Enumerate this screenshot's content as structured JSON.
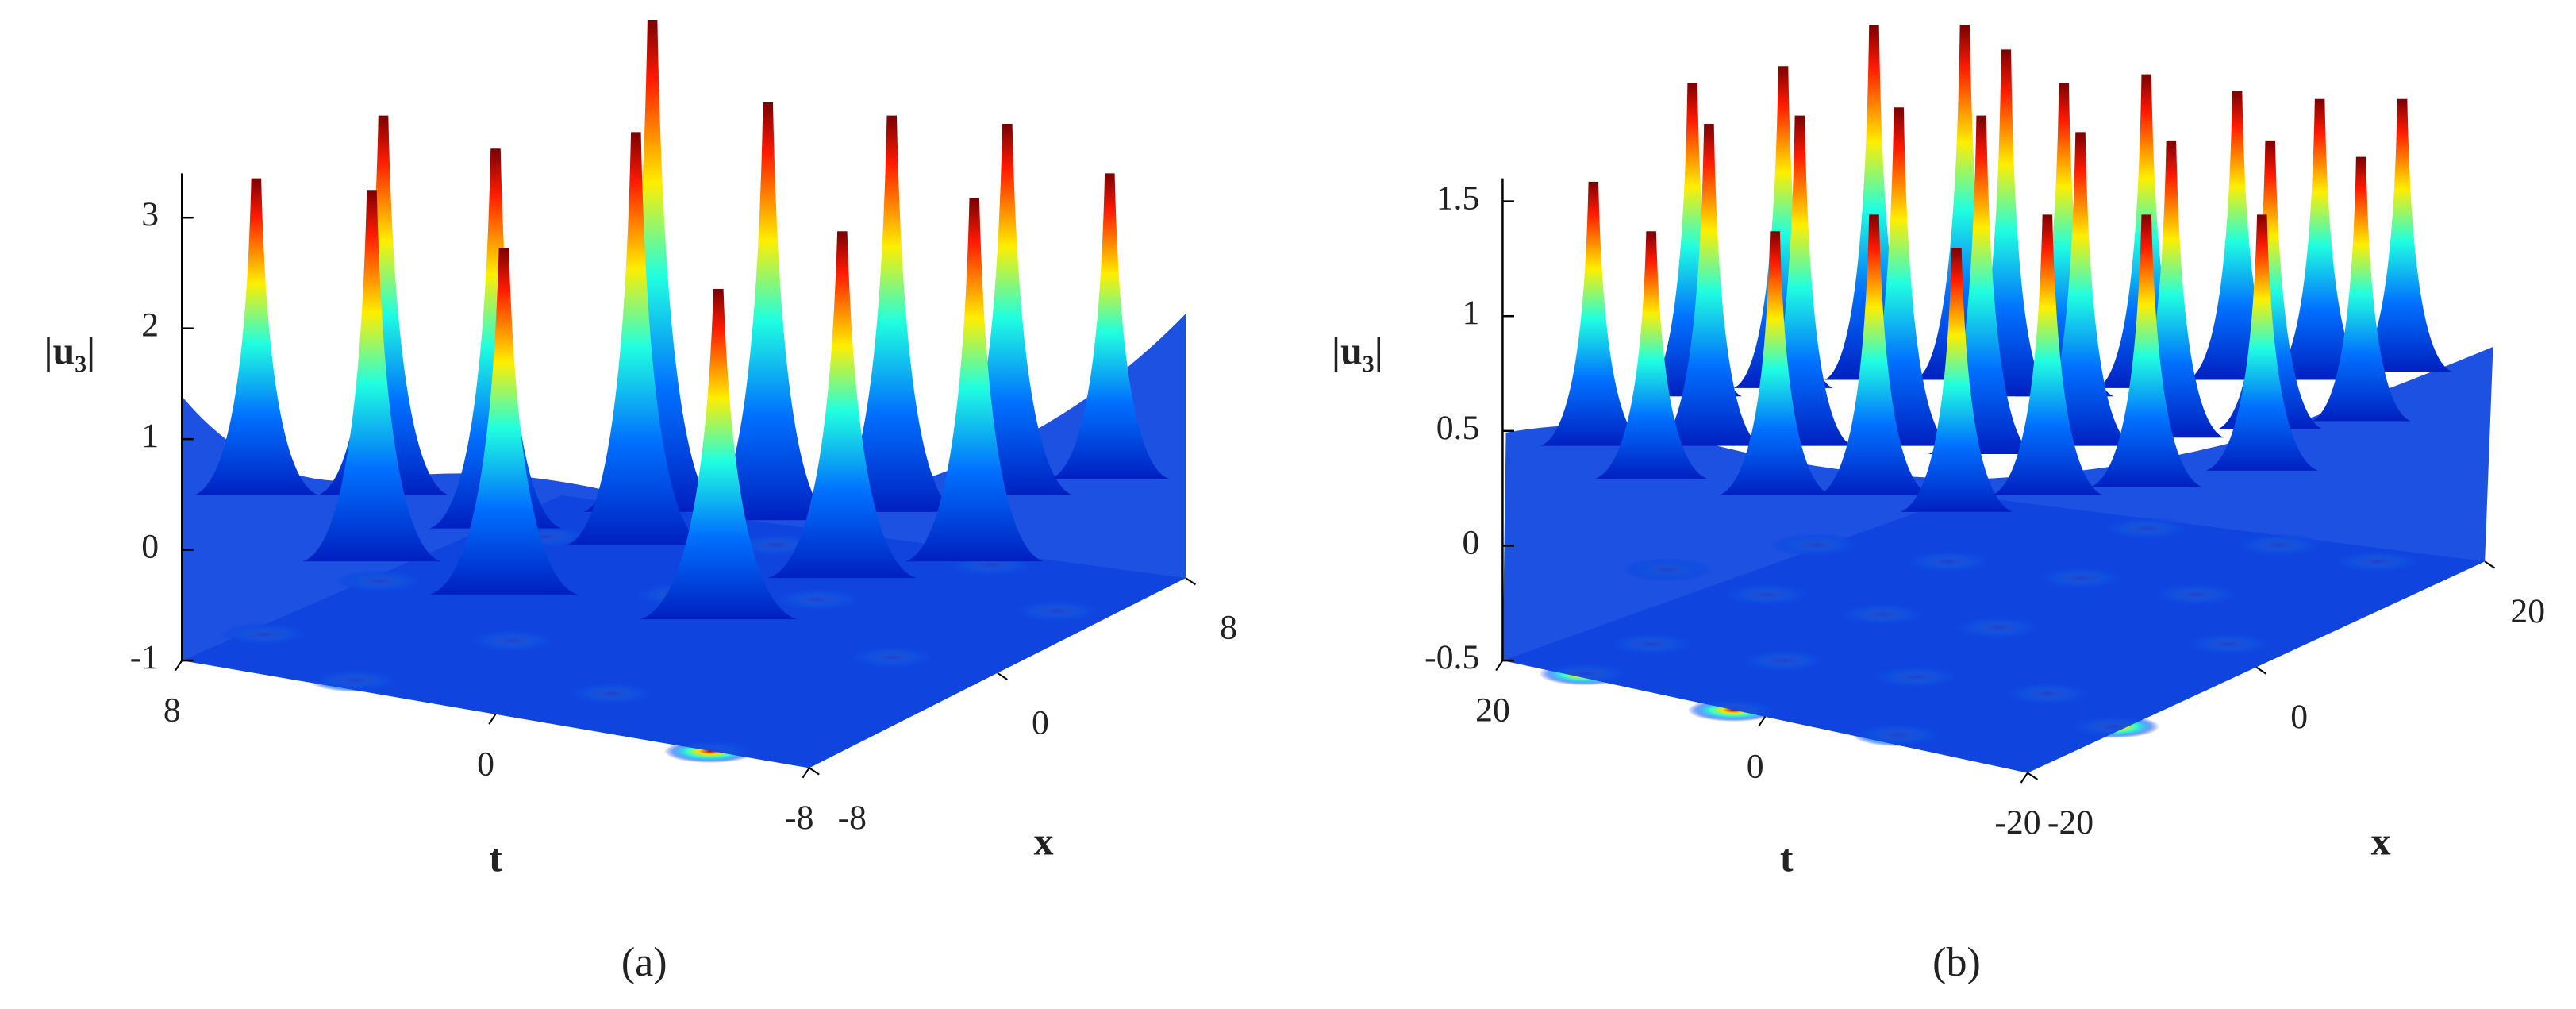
{
  "chart_data": [
    {
      "type": "surface3d",
      "zlabel": "|u₃|",
      "tlabel": "t",
      "xlabel": "x",
      "caption": "(a)",
      "zlim": [
        -1,
        3.4
      ],
      "zticks": [
        -1,
        0,
        1,
        2,
        3
      ],
      "tlim": [
        8,
        -8
      ],
      "tticks": [
        8,
        0,
        -8
      ],
      "xlim": [
        -8,
        8
      ],
      "xticks": [
        -8,
        0,
        8
      ],
      "colormap": "jet"
    },
    {
      "type": "surface3d",
      "zlabel": "|u₃|",
      "tlabel": "t",
      "xlabel": "x",
      "caption": "(b)",
      "zlim": [
        -0.5,
        1.6
      ],
      "zticks": [
        -0.5,
        0,
        0.5,
        1,
        1.5
      ],
      "tlim": [
        20,
        -20
      ],
      "tticks": [
        20,
        0,
        -20
      ],
      "xlim": [
        -20,
        20
      ],
      "xticks": [
        -20,
        0,
        20
      ],
      "colormap": "jet"
    }
  ]
}
